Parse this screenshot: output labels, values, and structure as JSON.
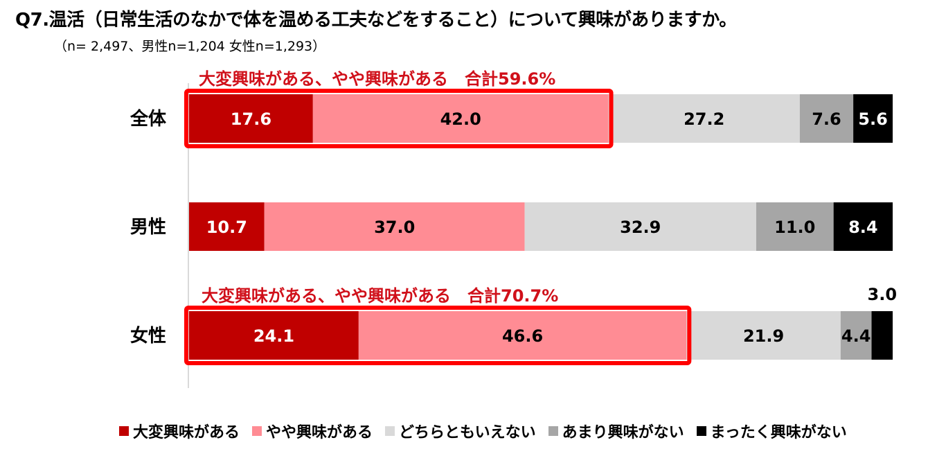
{
  "title": "Q7.温活（日常生活のなかで体を温める工夫などをすること）について興味がありますか。",
  "subtitle": "（n= 2,497、男性n=1,204 女性n=1,293）",
  "chart_data": {
    "type": "bar",
    "orientation": "horizontal",
    "stacked": true,
    "categories": [
      "全体",
      "男性",
      "女性"
    ],
    "series": [
      {
        "name": "大変興味がある",
        "color": "#c00000",
        "values": [
          17.6,
          10.7,
          24.1
        ]
      },
      {
        "name": "やや興味がある",
        "color": "#ff8c94",
        "values": [
          42.0,
          37.0,
          46.6
        ]
      },
      {
        "name": "どちらともいえない",
        "color": "#d9d9d9",
        "values": [
          27.2,
          32.9,
          21.9
        ]
      },
      {
        "name": "あまり興味がない",
        "color": "#a6a6a6",
        "values": [
          7.6,
          11.0,
          4.4
        ]
      },
      {
        "name": "まったく興味がない",
        "color": "#000000",
        "values": [
          5.6,
          8.4,
          3.0
        ]
      }
    ],
    "data_labels": [
      [
        "17.6",
        "42.0",
        "27.2",
        "7.6",
        "5.6"
      ],
      [
        "10.7",
        "37.0",
        "32.9",
        "11.0",
        "8.4"
      ],
      [
        "24.1",
        "46.6",
        "21.9",
        "4.4",
        "3.0"
      ]
    ],
    "xlim": [
      0,
      100
    ],
    "legend_position": "bottom",
    "grid": false,
    "annotations": [
      {
        "category": "全体",
        "text": "大変興味がある、やや興味がある　合計59.6%",
        "highlight_series": [
          0,
          1
        ]
      },
      {
        "category": "女性",
        "text": "大変興味がある、やや興味がある　合計70.7%",
        "highlight_series": [
          0,
          1
        ]
      }
    ],
    "highlight_color": "#ff0000"
  }
}
